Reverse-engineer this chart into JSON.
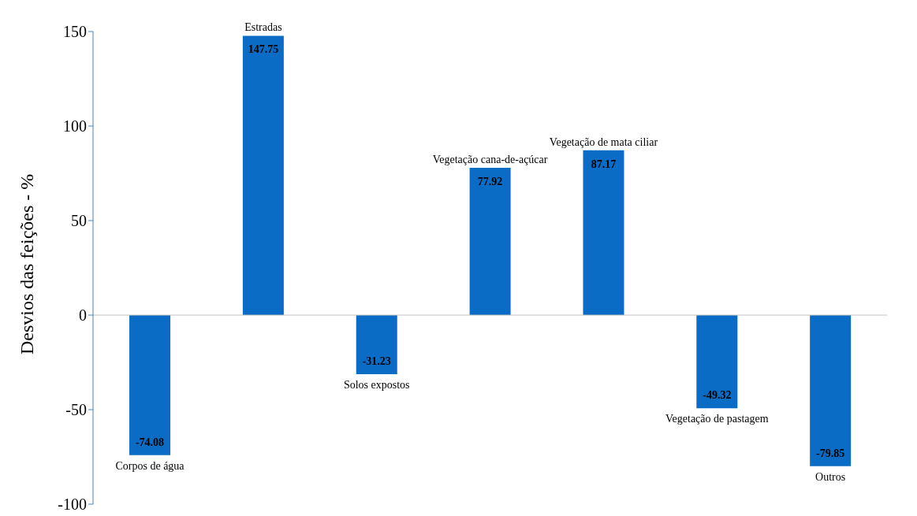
{
  "chart_data": {
    "type": "bar",
    "ylabel": "Desvios das feições - %",
    "categories": [
      "Corpos de água",
      "Estradas",
      "Solos expostos",
      "Vegetação cana-de-açúcar",
      "Vegetação de mata ciliar",
      "Vegetação de pastagem",
      "Outros"
    ],
    "values": [
      -74.08,
      147.75,
      -31.23,
      77.92,
      87.17,
      -49.32,
      -79.85
    ],
    "color": "#0a6cc4",
    "ylim": [
      -100,
      150
    ],
    "yticks": [
      -100,
      -50,
      0,
      50,
      100,
      150
    ],
    "data_labels": true,
    "tick_labels": "y"
  }
}
